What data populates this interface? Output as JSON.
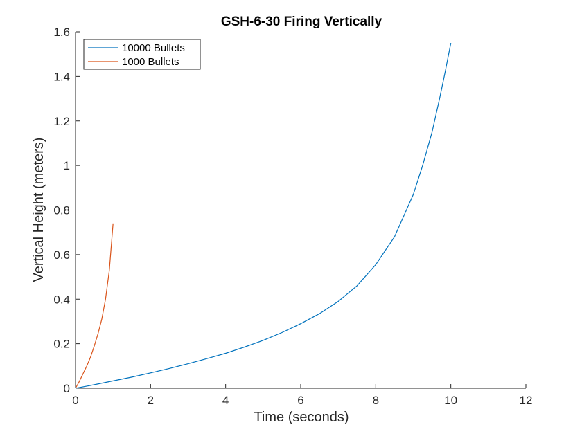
{
  "chart_data": {
    "type": "line",
    "title": "GSH-6-30 Firing Vertically",
    "xlabel": "Time (seconds)",
    "ylabel": "Vertical Height (meters)",
    "xlim": [
      0,
      12
    ],
    "ylim": [
      0,
      1.6
    ],
    "xticks": [
      "0",
      "2",
      "4",
      "6",
      "8",
      "10",
      "12"
    ],
    "yticks": [
      "0",
      "0.2",
      "0.4",
      "0.6",
      "0.8",
      "1",
      "1.2",
      "1.4",
      "1.6"
    ],
    "grid": false,
    "legend_position": "top-left",
    "series": [
      {
        "name": "10000 Bullets",
        "color": "#0072BD",
        "x": [
          0,
          0.5,
          1,
          1.5,
          2,
          2.5,
          3,
          3.5,
          4,
          4.5,
          5,
          5.5,
          6,
          6.5,
          7,
          7.5,
          8,
          8.5,
          9,
          9.25,
          9.5,
          9.7,
          9.85,
          10
        ],
        "y": [
          0,
          0.016,
          0.033,
          0.05,
          0.069,
          0.089,
          0.11,
          0.133,
          0.157,
          0.185,
          0.215,
          0.25,
          0.29,
          0.335,
          0.39,
          0.46,
          0.555,
          0.68,
          0.87,
          1.0,
          1.15,
          1.3,
          1.42,
          1.55
        ]
      },
      {
        "name": "1000 Bullets",
        "color": "#D95319",
        "x": [
          0,
          0.1,
          0.2,
          0.3,
          0.4,
          0.5,
          0.6,
          0.7,
          0.8,
          0.9,
          1.0
        ],
        "y": [
          0,
          0.03,
          0.065,
          0.1,
          0.14,
          0.19,
          0.245,
          0.31,
          0.4,
          0.53,
          0.74
        ]
      }
    ]
  }
}
